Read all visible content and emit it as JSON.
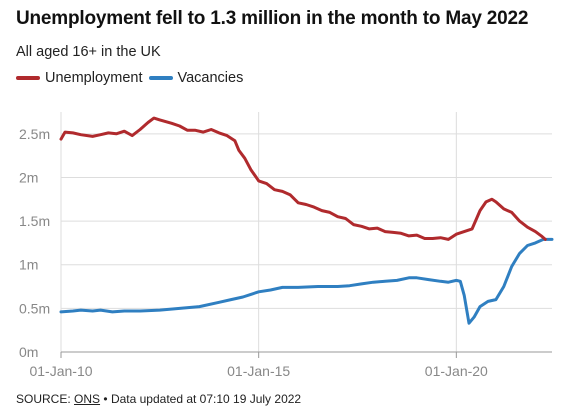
{
  "header": {
    "title": "Unemployment fell to 1.3 million in the month to May 2022",
    "subtitle": "All aged 16+ in the UK"
  },
  "footer": {
    "source_label": "SOURCE:",
    "source_link": "ONS",
    "separator": "•",
    "updated": "Data updated at 07:10 19 July 2022"
  },
  "colors": {
    "unemployment": "#b02a2d",
    "vacancies": "#2f7fc1",
    "grid": "#dddddd",
    "axis_text": "#888888"
  },
  "chart_data": {
    "type": "line",
    "title": "Unemployment fell to 1.3 million in the month to May 2022",
    "subtitle": "All aged 16+ in the UK",
    "xlabel": "",
    "ylabel": "",
    "xlim": [
      2010.0,
      2022.42
    ],
    "ylim": [
      0,
      2.75
    ],
    "y_ticks": [
      {
        "value": 0,
        "label": "0m"
      },
      {
        "value": 0.5,
        "label": "0.5m"
      },
      {
        "value": 1,
        "label": "1m"
      },
      {
        "value": 1.5,
        "label": "1.5m"
      },
      {
        "value": 2,
        "label": "2m"
      },
      {
        "value": 2.5,
        "label": "2.5m"
      }
    ],
    "x_ticks": [
      {
        "value": 2010,
        "label": "01-Jan-10"
      },
      {
        "value": 2015,
        "label": "01-Jan-15"
      },
      {
        "value": 2020,
        "label": "01-Jan-20"
      }
    ],
    "grid": true,
    "legend_position": "top-left",
    "series": [
      {
        "name": "Unemployment",
        "color": "#b02a2d",
        "points": [
          [
            2010.0,
            2.44
          ],
          [
            2010.1,
            2.52
          ],
          [
            2010.3,
            2.51
          ],
          [
            2010.5,
            2.49
          ],
          [
            2010.8,
            2.47
          ],
          [
            2011.0,
            2.49
          ],
          [
            2011.2,
            2.51
          ],
          [
            2011.4,
            2.5
          ],
          [
            2011.6,
            2.53
          ],
          [
            2011.8,
            2.48
          ],
          [
            2012.0,
            2.55
          ],
          [
            2012.2,
            2.63
          ],
          [
            2012.35,
            2.68
          ],
          [
            2012.5,
            2.66
          ],
          [
            2012.8,
            2.62
          ],
          [
            2013.0,
            2.59
          ],
          [
            2013.2,
            2.54
          ],
          [
            2013.4,
            2.54
          ],
          [
            2013.6,
            2.52
          ],
          [
            2013.8,
            2.55
          ],
          [
            2014.0,
            2.51
          ],
          [
            2014.2,
            2.48
          ],
          [
            2014.4,
            2.42
          ],
          [
            2014.5,
            2.31
          ],
          [
            2014.65,
            2.22
          ],
          [
            2014.8,
            2.09
          ],
          [
            2015.0,
            1.96
          ],
          [
            2015.2,
            1.93
          ],
          [
            2015.4,
            1.86
          ],
          [
            2015.6,
            1.84
          ],
          [
            2015.8,
            1.8
          ],
          [
            2016.0,
            1.71
          ],
          [
            2016.2,
            1.69
          ],
          [
            2016.4,
            1.66
          ],
          [
            2016.6,
            1.62
          ],
          [
            2016.8,
            1.6
          ],
          [
            2017.0,
            1.55
          ],
          [
            2017.2,
            1.53
          ],
          [
            2017.4,
            1.46
          ],
          [
            2017.6,
            1.44
          ],
          [
            2017.8,
            1.41
          ],
          [
            2018.0,
            1.42
          ],
          [
            2018.2,
            1.38
          ],
          [
            2018.4,
            1.37
          ],
          [
            2018.6,
            1.36
          ],
          [
            2018.8,
            1.33
          ],
          [
            2019.0,
            1.34
          ],
          [
            2019.2,
            1.3
          ],
          [
            2019.4,
            1.3
          ],
          [
            2019.6,
            1.31
          ],
          [
            2019.8,
            1.29
          ],
          [
            2020.0,
            1.35
          ],
          [
            2020.2,
            1.38
          ],
          [
            2020.4,
            1.41
          ],
          [
            2020.6,
            1.62
          ],
          [
            2020.75,
            1.72
          ],
          [
            2020.9,
            1.75
          ],
          [
            2021.0,
            1.72
          ],
          [
            2021.2,
            1.64
          ],
          [
            2021.4,
            1.6
          ],
          [
            2021.6,
            1.5
          ],
          [
            2021.8,
            1.43
          ],
          [
            2022.0,
            1.38
          ],
          [
            2022.15,
            1.33
          ],
          [
            2022.25,
            1.29
          ]
        ]
      },
      {
        "name": "Vacancies",
        "color": "#2f7fc1",
        "points": [
          [
            2010.0,
            0.46
          ],
          [
            2010.3,
            0.47
          ],
          [
            2010.5,
            0.48
          ],
          [
            2010.8,
            0.47
          ],
          [
            2011.0,
            0.48
          ],
          [
            2011.3,
            0.46
          ],
          [
            2011.6,
            0.47
          ],
          [
            2012.0,
            0.47
          ],
          [
            2012.5,
            0.48
          ],
          [
            2013.0,
            0.5
          ],
          [
            2013.5,
            0.52
          ],
          [
            2014.0,
            0.57
          ],
          [
            2014.3,
            0.6
          ],
          [
            2014.6,
            0.63
          ],
          [
            2014.8,
            0.66
          ],
          [
            2015.0,
            0.69
          ],
          [
            2015.3,
            0.71
          ],
          [
            2015.6,
            0.74
          ],
          [
            2016.0,
            0.74
          ],
          [
            2016.5,
            0.75
          ],
          [
            2017.0,
            0.75
          ],
          [
            2017.3,
            0.76
          ],
          [
            2017.6,
            0.78
          ],
          [
            2017.9,
            0.8
          ],
          [
            2018.2,
            0.81
          ],
          [
            2018.5,
            0.82
          ],
          [
            2018.8,
            0.85
          ],
          [
            2019.0,
            0.85
          ],
          [
            2019.3,
            0.83
          ],
          [
            2019.6,
            0.81
          ],
          [
            2019.8,
            0.8
          ],
          [
            2020.0,
            0.82
          ],
          [
            2020.1,
            0.81
          ],
          [
            2020.2,
            0.65
          ],
          [
            2020.32,
            0.33
          ],
          [
            2020.45,
            0.4
          ],
          [
            2020.6,
            0.52
          ],
          [
            2020.8,
            0.58
          ],
          [
            2021.0,
            0.6
          ],
          [
            2021.2,
            0.75
          ],
          [
            2021.4,
            0.98
          ],
          [
            2021.6,
            1.13
          ],
          [
            2021.8,
            1.22
          ],
          [
            2022.0,
            1.25
          ],
          [
            2022.2,
            1.29
          ],
          [
            2022.42,
            1.29
          ]
        ]
      }
    ]
  }
}
